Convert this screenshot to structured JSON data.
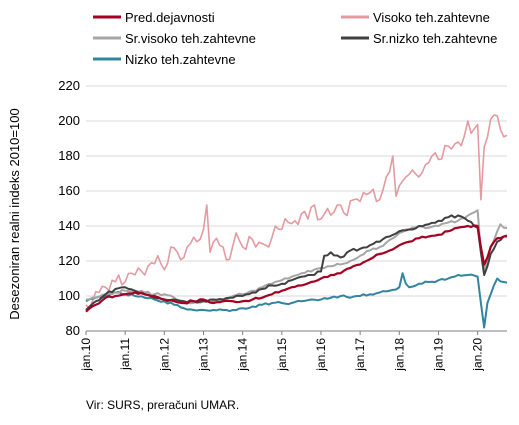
{
  "chart_data": {
    "type": "line",
    "title": "",
    "xlabel": "",
    "ylabel": "Desezoniran realni indeks 2010=100",
    "ylim": [
      80,
      220
    ],
    "yticks": [
      80,
      100,
      120,
      140,
      160,
      180,
      200,
      220
    ],
    "grid": "horizontal",
    "legend_position": "top",
    "x_tick_labels": [
      "jan.10",
      "jan.11",
      "jan.12",
      "jan.13",
      "jan.14",
      "jan.15",
      "jan.16",
      "jan.17",
      "jan.18",
      "jan.19",
      "jan.20"
    ],
    "source": "Vir: SURS, preračuni UMAR.",
    "series_meta": [
      {
        "name": "Pred.dejavnosti",
        "color": "#a50021",
        "width": 2.2
      },
      {
        "name": "Visoko teh.zahtevne",
        "color": "#e39aa0",
        "width": 1.6
      },
      {
        "name": "Sr.visoko teh.zahtevne",
        "color": "#a6a6a6",
        "width": 2.0
      },
      {
        "name": "Sr.nizko teh.zahtevne",
        "color": "#404040",
        "width": 2.0
      },
      {
        "name": "Nizko teh.zahtevne",
        "color": "#31859c",
        "width": 2.0
      }
    ],
    "series_anchors": [
      {
        "name": "Pred.dejavnosti",
        "points": [
          [
            0,
            91
          ],
          [
            3,
            95
          ],
          [
            6,
            99
          ],
          [
            9,
            100
          ],
          [
            12,
            101
          ],
          [
            15,
            102
          ],
          [
            18,
            101
          ],
          [
            21,
            100
          ],
          [
            24,
            98
          ],
          [
            27,
            97
          ],
          [
            30,
            96
          ],
          [
            33,
            97
          ],
          [
            36,
            98
          ],
          [
            39,
            96
          ],
          [
            42,
            97
          ],
          [
            45,
            97
          ],
          [
            48,
            97
          ],
          [
            51,
            98
          ],
          [
            54,
            99
          ],
          [
            57,
            101
          ],
          [
            60,
            103
          ],
          [
            63,
            105
          ],
          [
            66,
            106
          ],
          [
            69,
            108
          ],
          [
            72,
            110
          ],
          [
            75,
            112
          ],
          [
            78,
            113
          ],
          [
            81,
            116
          ],
          [
            84,
            118
          ],
          [
            87,
            121
          ],
          [
            90,
            124
          ],
          [
            93,
            126
          ],
          [
            96,
            129
          ],
          [
            99,
            131
          ],
          [
            102,
            133
          ],
          [
            105,
            134
          ],
          [
            108,
            135
          ],
          [
            111,
            137
          ],
          [
            114,
            139
          ],
          [
            117,
            140
          ],
          [
            120,
            140
          ],
          [
            121,
            128
          ],
          [
            122,
            118
          ],
          [
            123,
            122
          ],
          [
            124,
            128
          ],
          [
            126,
            133
          ],
          [
            128,
            134
          ]
        ]
      },
      {
        "name": "Visoko teh.zahtevne",
        "points": [
          [
            0,
            95
          ],
          [
            2,
            97
          ],
          [
            4,
            102
          ],
          [
            6,
            105
          ],
          [
            8,
            109
          ],
          [
            10,
            112
          ],
          [
            12,
            108
          ],
          [
            14,
            113
          ],
          [
            16,
            116
          ],
          [
            18,
            112
          ],
          [
            20,
            119
          ],
          [
            22,
            123
          ],
          [
            24,
            115
          ],
          [
            26,
            128
          ],
          [
            28,
            125
          ],
          [
            30,
            122
          ],
          [
            32,
            130
          ],
          [
            34,
            131
          ],
          [
            36,
            138
          ],
          [
            37,
            152
          ],
          [
            38,
            125
          ],
          [
            40,
            133
          ],
          [
            42,
            128
          ],
          [
            44,
            121
          ],
          [
            46,
            136
          ],
          [
            48,
            128
          ],
          [
            50,
            134
          ],
          [
            52,
            128
          ],
          [
            54,
            130
          ],
          [
            56,
            128
          ],
          [
            58,
            140
          ],
          [
            60,
            138
          ],
          [
            62,
            142
          ],
          [
            64,
            143
          ],
          [
            66,
            147
          ],
          [
            68,
            144
          ],
          [
            70,
            152
          ],
          [
            72,
            144
          ],
          [
            74,
            150
          ],
          [
            76,
            148
          ],
          [
            78,
            152
          ],
          [
            80,
            146
          ],
          [
            82,
            155
          ],
          [
            84,
            154
          ],
          [
            86,
            158
          ],
          [
            88,
            161
          ],
          [
            90,
            155
          ],
          [
            92,
            168
          ],
          [
            94,
            180
          ],
          [
            95,
            157
          ],
          [
            96,
            163
          ],
          [
            98,
            168
          ],
          [
            100,
            172
          ],
          [
            102,
            168
          ],
          [
            104,
            175
          ],
          [
            106,
            180
          ],
          [
            108,
            178
          ],
          [
            110,
            186
          ],
          [
            112,
            184
          ],
          [
            114,
            188
          ],
          [
            116,
            192
          ],
          [
            117,
            200
          ],
          [
            118,
            193
          ],
          [
            120,
            198
          ],
          [
            121,
            155
          ],
          [
            122,
            185
          ],
          [
            124,
            201
          ],
          [
            126,
            203
          ],
          [
            127,
            195
          ],
          [
            128,
            191
          ]
        ]
      },
      {
        "name": "Sr.visoko teh.zahtevne",
        "points": [
          [
            0,
            98
          ],
          [
            3,
            99
          ],
          [
            6,
            101
          ],
          [
            9,
            102
          ],
          [
            12,
            103
          ],
          [
            15,
            103
          ],
          [
            18,
            102
          ],
          [
            21,
            101
          ],
          [
            24,
            101
          ],
          [
            27,
            99
          ],
          [
            30,
            97
          ],
          [
            33,
            96
          ],
          [
            36,
            97
          ],
          [
            39,
            97
          ],
          [
            42,
            98
          ],
          [
            45,
            100
          ],
          [
            48,
            101
          ],
          [
            51,
            103
          ],
          [
            54,
            105
          ],
          [
            57,
            107
          ],
          [
            60,
            109
          ],
          [
            63,
            111
          ],
          [
            66,
            113
          ],
          [
            69,
            114
          ],
          [
            72,
            116
          ],
          [
            75,
            117
          ],
          [
            78,
            118
          ],
          [
            81,
            120
          ],
          [
            84,
            123
          ],
          [
            87,
            126
          ],
          [
            90,
            128
          ],
          [
            93,
            132
          ],
          [
            96,
            136
          ],
          [
            99,
            138
          ],
          [
            102,
            140
          ],
          [
            105,
            139
          ],
          [
            108,
            140
          ],
          [
            111,
            142
          ],
          [
            114,
            143
          ],
          [
            117,
            146
          ],
          [
            120,
            149
          ],
          [
            121,
            125
          ],
          [
            122,
            115
          ],
          [
            123,
            121
          ],
          [
            124,
            128
          ],
          [
            126,
            137
          ],
          [
            127,
            141
          ],
          [
            128,
            139
          ]
        ]
      },
      {
        "name": "Sr.nizko teh.zahtevne",
        "points": [
          [
            0,
            92
          ],
          [
            3,
            97
          ],
          [
            6,
            101
          ],
          [
            9,
            104
          ],
          [
            12,
            105
          ],
          [
            15,
            103
          ],
          [
            18,
            101
          ],
          [
            21,
            99
          ],
          [
            24,
            98
          ],
          [
            27,
            98
          ],
          [
            30,
            97
          ],
          [
            33,
            97
          ],
          [
            36,
            97
          ],
          [
            39,
            98
          ],
          [
            42,
            98
          ],
          [
            45,
            99
          ],
          [
            48,
            100
          ],
          [
            51,
            102
          ],
          [
            54,
            104
          ],
          [
            57,
            106
          ],
          [
            60,
            107
          ],
          [
            63,
            109
          ],
          [
            66,
            111
          ],
          [
            69,
            112
          ],
          [
            72,
            114
          ],
          [
            73,
            123
          ],
          [
            75,
            125
          ],
          [
            78,
            122
          ],
          [
            81,
            126
          ],
          [
            84,
            127
          ],
          [
            87,
            129
          ],
          [
            90,
            131
          ],
          [
            93,
            134
          ],
          [
            96,
            137
          ],
          [
            99,
            138
          ],
          [
            102,
            140
          ],
          [
            105,
            141
          ],
          [
            108,
            143
          ],
          [
            111,
            145
          ],
          [
            114,
            146
          ],
          [
            117,
            143
          ],
          [
            120,
            139
          ],
          [
            121,
            125
          ],
          [
            122,
            112
          ],
          [
            123,
            117
          ],
          [
            124,
            124
          ],
          [
            126,
            131
          ],
          [
            128,
            134
          ]
        ]
      },
      {
        "name": "Nizko teh.zahtevne",
        "points": [
          [
            0,
            97
          ],
          [
            3,
            99
          ],
          [
            6,
            100
          ],
          [
            9,
            102
          ],
          [
            12,
            101
          ],
          [
            15,
            100
          ],
          [
            18,
            99
          ],
          [
            21,
            98
          ],
          [
            24,
            97
          ],
          [
            27,
            95
          ],
          [
            30,
            93
          ],
          [
            33,
            92
          ],
          [
            36,
            92
          ],
          [
            39,
            92
          ],
          [
            42,
            92
          ],
          [
            45,
            92
          ],
          [
            48,
            93
          ],
          [
            51,
            94
          ],
          [
            54,
            95
          ],
          [
            57,
            96
          ],
          [
            60,
            96
          ],
          [
            63,
            96
          ],
          [
            66,
            97
          ],
          [
            69,
            98
          ],
          [
            72,
            98
          ],
          [
            75,
            99
          ],
          [
            78,
            100
          ],
          [
            81,
            99
          ],
          [
            84,
            100
          ],
          [
            87,
            101
          ],
          [
            90,
            102
          ],
          [
            93,
            103
          ],
          [
            96,
            105
          ],
          [
            97,
            113
          ],
          [
            98,
            107
          ],
          [
            99,
            105
          ],
          [
            102,
            107
          ],
          [
            105,
            108
          ],
          [
            108,
            109
          ],
          [
            111,
            110
          ],
          [
            114,
            112
          ],
          [
            117,
            112
          ],
          [
            120,
            111
          ],
          [
            121,
            96
          ],
          [
            122,
            82
          ],
          [
            123,
            96
          ],
          [
            124,
            101
          ],
          [
            126,
            110
          ],
          [
            128,
            108
          ]
        ]
      }
    ]
  }
}
